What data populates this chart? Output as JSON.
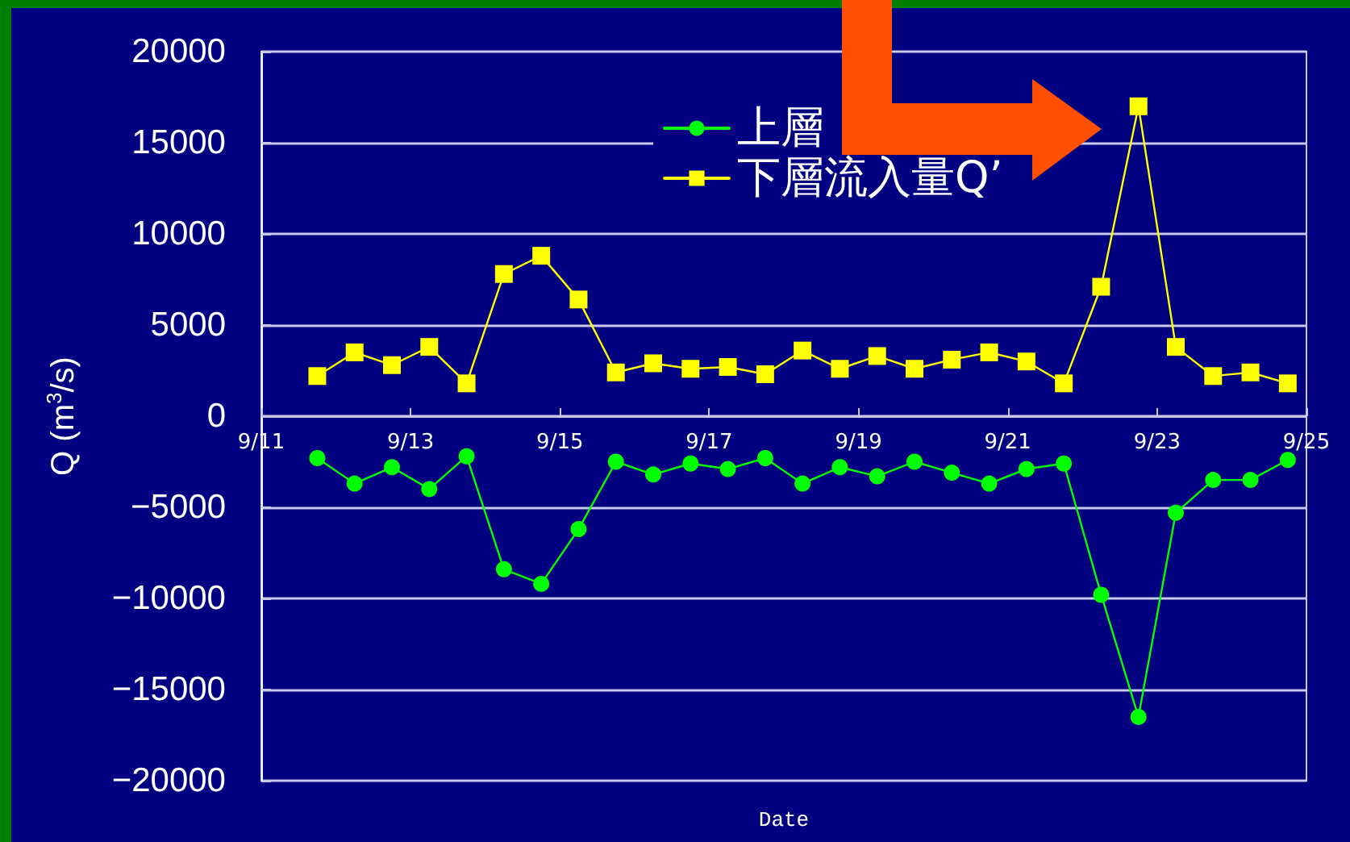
{
  "chart_data": {
    "type": "line",
    "xlabel": "Date",
    "ylabel": "Q (m$^{3}$/s)",
    "x": [
      "--09-11T18:00",
      "--09-12T06:00",
      "--09-12T18:00",
      "--09-13T06:00",
      "--09-13T18:00",
      "--09-14T06:00",
      "--09-14T18:00",
      "--09-15T06:00",
      "--09-15T18:00",
      "--09-16T06:00",
      "--09-16T18:00",
      "--09-17T06:00",
      "--09-17T18:00",
      "--09-18T06:00",
      "--09-18T18:00",
      "--09-19T06:00",
      "--09-19T18:00",
      "--09-20T06:00",
      "--09-20T18:00",
      "--09-21T06:00",
      "--09-21T18:00",
      "--09-22T06:00",
      "--09-22T18:00",
      "--09-23T06:00",
      "--09-23T18:00",
      "--09-24T06:00",
      "--09-24T18:00"
    ],
    "series": [
      {
        "name": "上層",
        "color": "#00ff00",
        "marker": "circle",
        "values": [
          -2300,
          -3700,
          -2800,
          -4000,
          -2200,
          -8400,
          -9200,
          -6200,
          -2500,
          -3200,
          -2600,
          -2900,
          -2300,
          -3700,
          -2800,
          -3300,
          -2500,
          -3100,
          -3700,
          -2900,
          -2600,
          -9800,
          -16500,
          -5300,
          -3500,
          -3500,
          -2400
        ]
      },
      {
        "name": "下層流入量Q’",
        "color": "#ffff00",
        "marker": "square",
        "values": [
          2200,
          3500,
          2800,
          3800,
          1800,
          7800,
          8800,
          6400,
          2400,
          2900,
          2600,
          2700,
          2300,
          3600,
          2600,
          3300,
          2600,
          3100,
          3500,
          3000,
          1800,
          7100,
          17000,
          3800,
          2200,
          2400,
          1800
        ]
      }
    ],
    "xlim": [
      "--09-11",
      "--09-25"
    ],
    "xticks": [
      {
        "value": "--09-11",
        "label": "9/11"
      },
      {
        "value": "--09-13",
        "label": "9/13"
      },
      {
        "value": "--09-15",
        "label": "9/15"
      },
      {
        "value": "--09-17",
        "label": "9/17"
      },
      {
        "value": "--09-19",
        "label": "9/19"
      },
      {
        "value": "--09-21",
        "label": "9/21"
      },
      {
        "value": "--09-23",
        "label": "9/23"
      },
      {
        "value": "--09-25",
        "label": "9/25"
      }
    ],
    "ylim": [
      -20000,
      20000
    ],
    "yticks": [
      -20000,
      -15000,
      -10000,
      -5000,
      0,
      5000,
      10000,
      15000,
      20000
    ],
    "grid": "y",
    "legend": "top right",
    "line_style": "solid"
  }
}
